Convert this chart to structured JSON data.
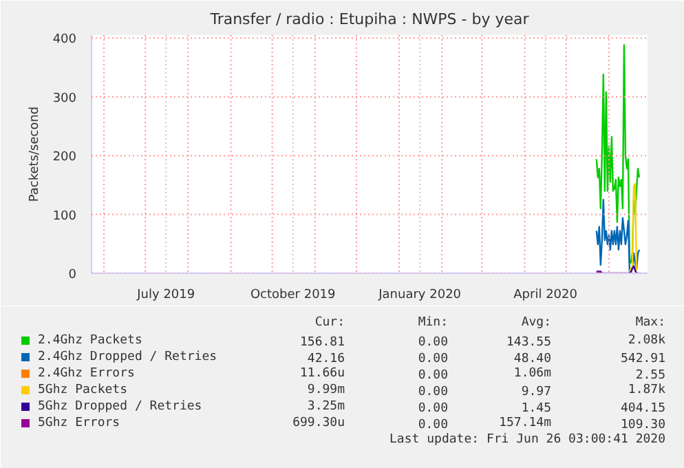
{
  "chart_data": {
    "type": "line",
    "title": "Transfer / radio : Etupiha : NWPS - by year",
    "ylabel": "Packets/second",
    "x": [
      "2020-05-23",
      "2020-05-24",
      "2020-05-25",
      "2020-05-26",
      "2020-05-27",
      "2020-05-28",
      "2020-05-29",
      "2020-05-30",
      "2020-05-31",
      "2020-06-01",
      "2020-06-02",
      "2020-06-03",
      "2020-06-04",
      "2020-06-05",
      "2020-06-06",
      "2020-06-07",
      "2020-06-08",
      "2020-06-09",
      "2020-06-10",
      "2020-06-11",
      "2020-06-12",
      "2020-06-13",
      "2020-06-14",
      "2020-06-15",
      "2020-06-16",
      "2020-06-17",
      "2020-06-18",
      "2020-06-19",
      "2020-06-20",
      "2020-06-21",
      "2020-06-22",
      "2020-06-23"
    ],
    "series": [
      {
        "name": "2.4Ghz Packets",
        "color": "#00cc00",
        "values": [
          194,
          163,
          178,
          110,
          201,
          338,
          140,
          308,
          140,
          216,
          155,
          232,
          140,
          144,
          159,
          87,
          163,
          148,
          159,
          110,
          388,
          201,
          178,
          194,
          18,
          18,
          34,
          125,
          102,
          140,
          178,
          163
        ]
      },
      {
        "name": "2.4Ghz Dropped / Retries",
        "color": "#0066b3",
        "values": [
          72,
          49,
          79,
          14,
          56,
          125,
          56,
          72,
          49,
          64,
          40,
          72,
          49,
          72,
          49,
          79,
          40,
          72,
          49,
          94,
          72,
          49,
          64,
          89,
          3,
          3,
          10,
          34,
          18,
          6,
          34,
          40
        ]
      },
      {
        "name": "2.4Ghz Errors",
        "color": "#ff8000",
        "values": [
          null,
          null,
          null,
          null,
          null,
          null,
          null,
          null,
          null,
          null,
          null,
          null,
          null,
          null,
          null,
          null,
          null,
          null,
          null,
          null,
          null,
          null,
          null,
          null,
          null,
          null,
          null,
          null,
          null,
          null,
          null,
          null
        ]
      },
      {
        "name": "5Ghz Packets",
        "color": "#ffcc00",
        "values": [
          null,
          null,
          null,
          null,
          null,
          null,
          null,
          null,
          null,
          null,
          null,
          null,
          null,
          null,
          null,
          null,
          null,
          null,
          null,
          null,
          null,
          null,
          null,
          null,
          3,
          8,
          10,
          148,
          152,
          5,
          null,
          null
        ]
      },
      {
        "name": "5Ghz Dropped / Retries",
        "color": "#330099",
        "values": [
          3,
          3,
          3,
          3,
          0,
          0,
          0,
          0,
          0,
          0,
          0,
          0,
          0,
          0,
          0,
          0,
          0,
          0,
          0,
          0,
          0,
          0,
          0,
          0,
          0,
          2,
          8,
          12,
          5,
          0,
          0,
          0
        ]
      },
      {
        "name": "5Ghz Errors",
        "color": "#990099",
        "values": [
          2,
          2,
          2,
          2,
          null,
          null,
          null,
          null,
          null,
          null,
          null,
          null,
          null,
          null,
          null,
          null,
          null,
          null,
          null,
          null,
          null,
          null,
          null,
          null,
          null,
          null,
          null,
          null,
          null,
          null,
          null,
          null
        ]
      }
    ],
    "xlim": [
      "2019-05-23",
      "2020-06-29"
    ],
    "xticks": [
      {
        "value": "2019-06-01",
        "label": null
      },
      {
        "value": "2019-07-01",
        "label": null
      },
      {
        "value": "2019-07-16",
        "label": "July 2019"
      },
      {
        "value": "2019-08-01",
        "label": null
      },
      {
        "value": "2019-09-01",
        "label": null
      },
      {
        "value": "2019-10-01",
        "label": null
      },
      {
        "value": "2019-10-16",
        "label": "October 2019"
      },
      {
        "value": "2019-11-01",
        "label": null
      },
      {
        "value": "2019-12-01",
        "label": null
      },
      {
        "value": "2020-01-01",
        "label": null
      },
      {
        "value": "2020-01-16",
        "label": "January 2020"
      },
      {
        "value": "2020-02-01",
        "label": null
      },
      {
        "value": "2020-03-01",
        "label": null
      },
      {
        "value": "2020-04-01",
        "label": null
      },
      {
        "value": "2020-04-16",
        "label": "April 2020"
      },
      {
        "value": "2020-05-01",
        "label": null
      },
      {
        "value": "2020-06-01",
        "label": null
      }
    ],
    "ylim": [
      0,
      405
    ],
    "yticks": [
      0,
      100,
      200,
      300,
      400
    ],
    "grid": true,
    "legend": "bottom",
    "marker": "none",
    "line_style": "solid",
    "annotations": [
      "Cur:",
      "Min:",
      "Avg:",
      "Max:",
      "156.81",
      "0.00",
      "143.55",
      "2.08k",
      "42.16",
      "0.00",
      "48.40",
      "542.91",
      "11.66u",
      "0.00",
      "1.06m",
      "2.55",
      "9.99m",
      "0.00",
      "9.97",
      "1.87k",
      "3.25m",
      "0.00",
      "1.45",
      "404.15",
      "699.30u",
      "0.00",
      "157.14m",
      "109.30",
      "Last update: Fri Jun 26 03:00:41 2020"
    ]
  }
}
